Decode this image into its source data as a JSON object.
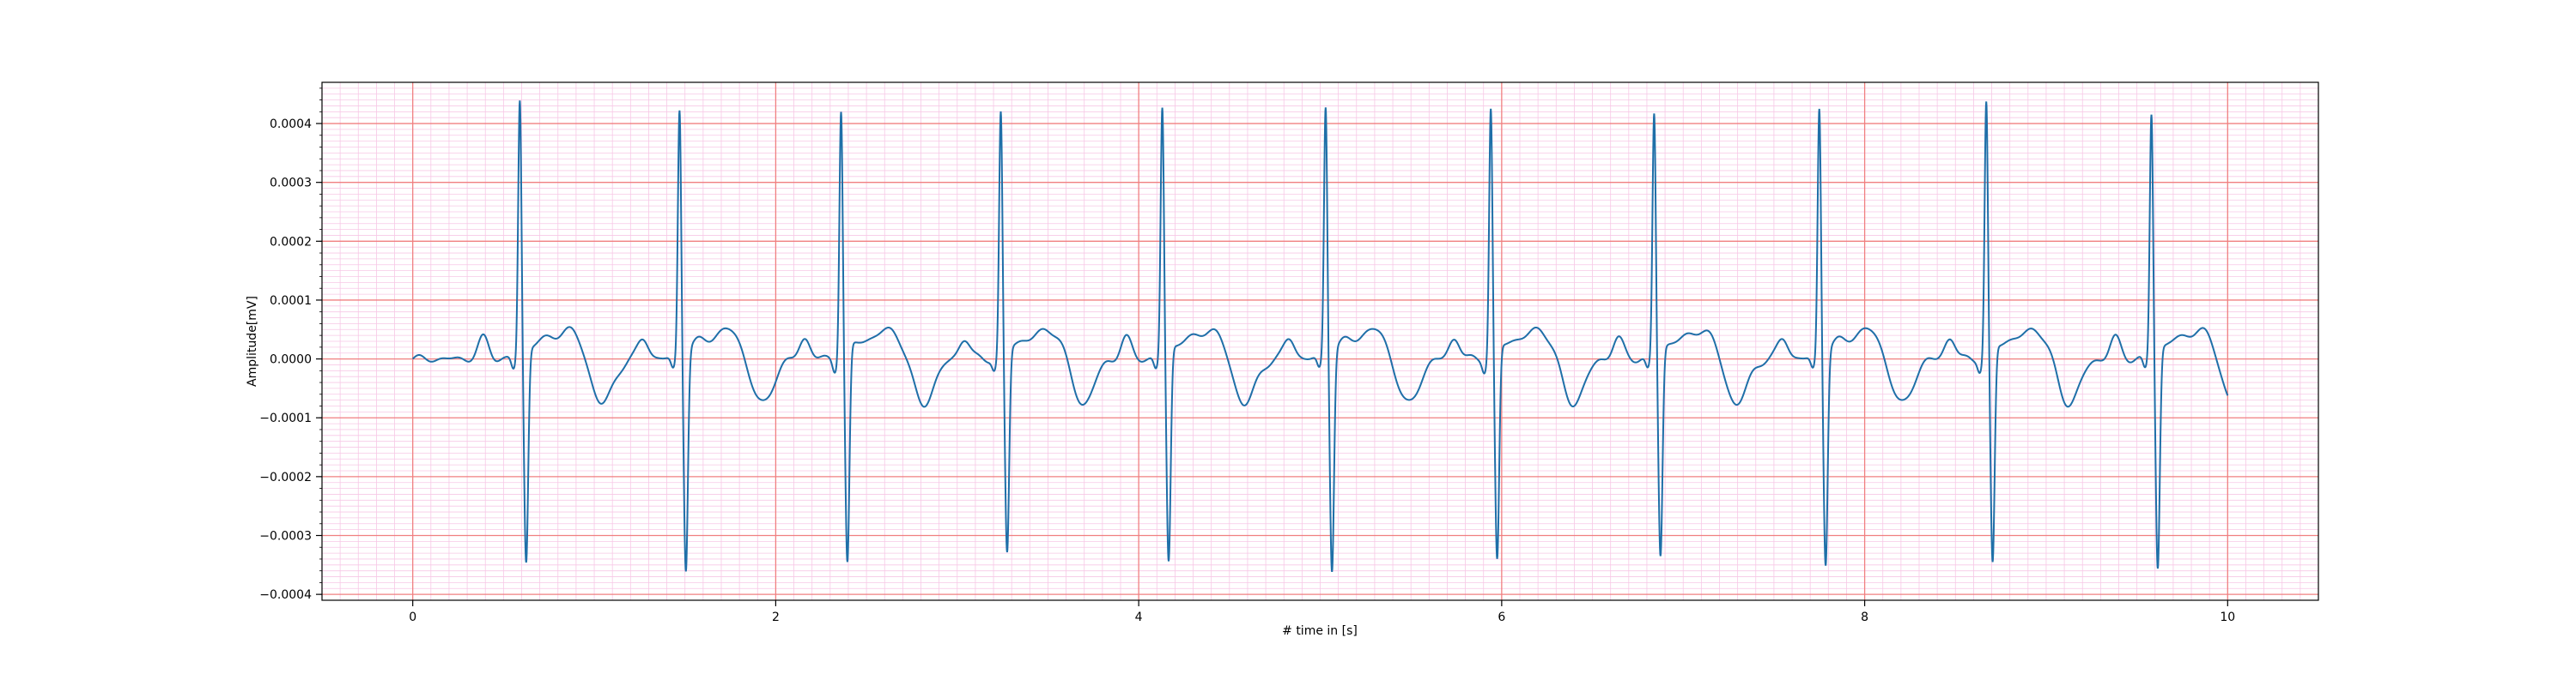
{
  "chart_data": {
    "type": "line",
    "title": "",
    "xlabel": "# time in [s]",
    "ylabel": "Amplitude[mV]",
    "xlim": [
      -0.5,
      10.5
    ],
    "ylim": [
      -0.00041,
      0.00047
    ],
    "xticks": [
      0,
      2,
      4,
      6,
      8,
      10
    ],
    "xtick_labels": [
      "0",
      "2",
      "4",
      "6",
      "8",
      "10"
    ],
    "yticks": [
      -0.0004,
      -0.0003,
      -0.0002,
      -0.0001,
      0.0,
      0.0001,
      0.0002,
      0.0003,
      0.0004
    ],
    "ytick_labels": [
      "−0.0004",
      "−0.0003",
      "−0.0002",
      "−0.0001",
      "0.0000",
      "0.0001",
      "0.0002",
      "0.0003",
      "0.0004"
    ],
    "grid": {
      "major": true,
      "minor": true
    },
    "colors": {
      "line": "#1f6fa8",
      "major_grid": "#f08080",
      "minor_grid": "#f7c8e6"
    },
    "series": [
      {
        "r_peak_times": [
          0.59,
          1.47,
          2.36,
          3.24,
          4.13,
          5.03,
          5.94,
          6.84,
          7.75,
          8.67,
          9.58
        ],
        "r_peak_values": [
          0.000435,
          0.00042,
          0.00042,
          0.000412,
          0.000422,
          0.000425,
          0.00042,
          0.000412,
          0.000422,
          0.00043,
          0.000412
        ],
        "s_trough_values": [
          -0.00036,
          -0.00037,
          -0.000365,
          -0.000345,
          -0.00036,
          -0.00037,
          -0.00036,
          -0.00035,
          -0.00036,
          -0.000365,
          -0.00037
        ],
        "x_range": [
          0.0,
          10.0
        ]
      }
    ]
  }
}
